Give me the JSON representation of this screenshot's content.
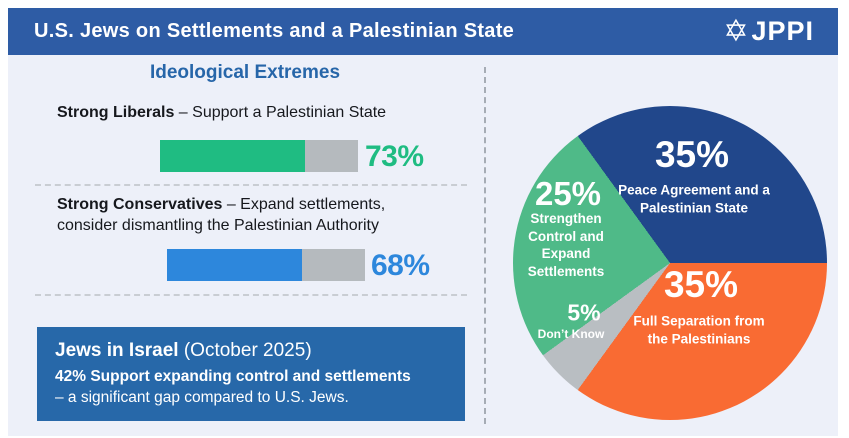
{
  "colors": {
    "header_bg": "#2e5ca5",
    "panel_bg": "#edf0f9",
    "callout_bg": "#2768a9",
    "bar_track": "#b5babe"
  },
  "header": {
    "title": "U.S. Jews on Settlements and a Palestinian State",
    "logo_icon": "star-of-david",
    "logo_star": "✡",
    "logo_text": "JPPI"
  },
  "left": {
    "section_title": "Ideological Extremes",
    "rows": [
      {
        "bold": "Strong Liberals",
        "rest": " – Support a Palestinian State"
      },
      {
        "bold": "Strong Conservatives",
        "rest": " – Expand settlements, consider dismantling the Palestinian Authority"
      }
    ],
    "callout": {
      "title_bold": "Jews in Israel",
      "title_rest": " (October 2025)",
      "line1": "42% Support expanding control and settlements",
      "line2": "– a significant gap compared to U.S. Jews."
    }
  },
  "chart_data": [
    {
      "type": "pie",
      "start_angle_deg": -36,
      "legend_position": "inside",
      "slices": [
        {
          "label": "Peace Agreement and a Palestinian State",
          "value": 35,
          "pct_label": "35%",
          "color": "#21478b"
        },
        {
          "label": "Full Separation from the Palestinians",
          "value": 35,
          "pct_label": "35%",
          "color": "#f96b33"
        },
        {
          "label": "Don’t Know",
          "value": 5,
          "pct_label": "5%",
          "color": "#b9bec2"
        },
        {
          "label": "Strengthen Control and Expand Settlements",
          "value": 25,
          "pct_label": "25%",
          "color": "#4fba88"
        }
      ]
    },
    {
      "type": "bar",
      "categories": [
        "Strong Liberals",
        "Strong Conservatives"
      ],
      "values": [
        73,
        68
      ],
      "value_labels": [
        "73%",
        "68%"
      ],
      "colors": [
        "#1fbc82",
        "#2d87dc"
      ],
      "track_color": "#b5babe",
      "xlim": [
        0,
        100
      ]
    }
  ]
}
